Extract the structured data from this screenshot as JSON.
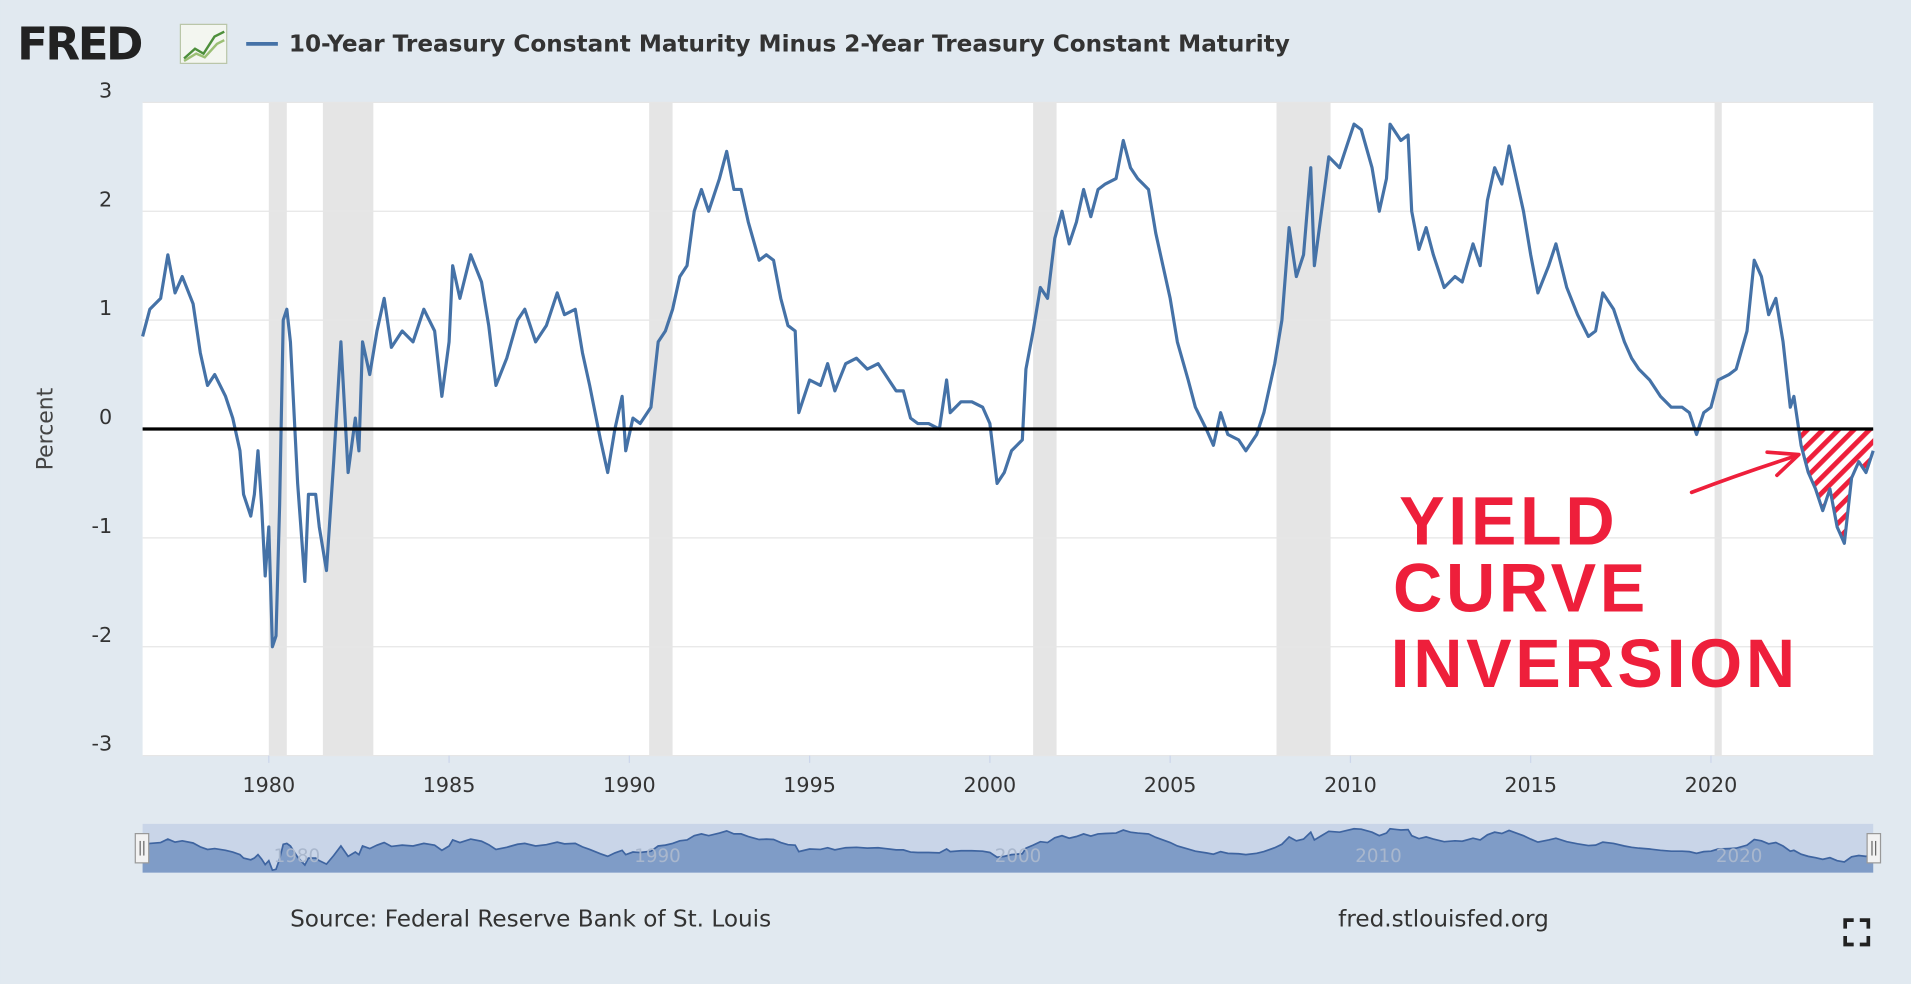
{
  "chart_data": {
    "type": "line",
    "logo": "FRED",
    "y_label": "Percent",
    "source": "Source: Federal Reserve Bank of St. Louis",
    "site": "fred.stlouisfed.org",
    "annotation": [
      "YIELD",
      "CURVE",
      "INVERSION"
    ],
    "xlim": [
      1976.5,
      2024.5
    ],
    "xticks": [
      1980,
      1985,
      1990,
      1995,
      2000,
      2005,
      2010,
      2015,
      2020
    ],
    "ylim": [
      -3,
      3
    ],
    "yticks": [
      -3,
      -2,
      -1,
      0,
      1,
      2,
      3
    ],
    "grid": true,
    "plot_line": 0,
    "recessions": [
      [
        1980.0,
        1980.5
      ],
      [
        1981.5,
        1982.9
      ],
      [
        1990.55,
        1991.2
      ],
      [
        2001.2,
        2001.85
      ],
      [
        2007.95,
        2009.45
      ],
      [
        2020.1,
        2020.3
      ]
    ],
    "navigator_ticks": [
      1980,
      1990,
      2000,
      2010,
      2020
    ],
    "x": [
      1976.5,
      1976.7,
      1977.0,
      1977.2,
      1977.4,
      1977.6,
      1977.9,
      1978.1,
      1978.3,
      1978.5,
      1978.8,
      1979.0,
      1979.2,
      1979.3,
      1979.5,
      1979.6,
      1979.7,
      1979.8,
      1979.9,
      1980.0,
      1980.1,
      1980.2,
      1980.3,
      1980.4,
      1980.5,
      1980.6,
      1980.8,
      1981.0,
      1981.1,
      1981.3,
      1981.4,
      1981.6,
      1981.8,
      1982.0,
      1982.2,
      1982.4,
      1982.5,
      1982.6,
      1982.8,
      1983.0,
      1983.2,
      1983.4,
      1983.7,
      1984.0,
      1984.3,
      1984.6,
      1984.8,
      1985.0,
      1985.1,
      1985.3,
      1985.6,
      1985.9,
      1986.1,
      1986.3,
      1986.6,
      1986.9,
      1987.1,
      1987.4,
      1987.7,
      1988.0,
      1988.2,
      1988.5,
      1988.7,
      1988.9,
      1989.2,
      1989.4,
      1989.6,
      1989.8,
      1989.9,
      1990.1,
      1990.3,
      1990.6,
      1990.8,
      1991.0,
      1991.2,
      1991.4,
      1991.6,
      1991.8,
      1992.0,
      1992.2,
      1992.5,
      1992.7,
      1992.9,
      1993.1,
      1993.3,
      1993.6,
      1993.8,
      1994.0,
      1994.2,
      1994.4,
      1994.6,
      1994.7,
      1995.0,
      1995.3,
      1995.5,
      1995.7,
      1996.0,
      1996.3,
      1996.6,
      1996.9,
      1997.1,
      1997.4,
      1997.6,
      1997.8,
      1998.0,
      1998.3,
      1998.6,
      1998.8,
      1998.9,
      1999.2,
      1999.5,
      1999.8,
      2000.0,
      2000.2,
      2000.4,
      2000.6,
      2000.9,
      2001.0,
      2001.2,
      2001.4,
      2001.6,
      2001.8,
      2002.0,
      2002.2,
      2002.4,
      2002.6,
      2002.8,
      2003.0,
      2003.2,
      2003.5,
      2003.7,
      2003.9,
      2004.1,
      2004.4,
      2004.6,
      2004.8,
      2005.0,
      2005.2,
      2005.5,
      2005.7,
      2006.0,
      2006.2,
      2006.4,
      2006.6,
      2006.9,
      2007.1,
      2007.4,
      2007.6,
      2007.9,
      2008.1,
      2008.3,
      2008.5,
      2008.7,
      2008.9,
      2009.0,
      2009.2,
      2009.4,
      2009.7,
      2009.9,
      2010.1,
      2010.3,
      2010.6,
      2010.8,
      2011.0,
      2011.1,
      2011.4,
      2011.6,
      2011.7,
      2011.9,
      2012.1,
      2012.3,
      2012.6,
      2012.9,
      2013.1,
      2013.4,
      2013.6,
      2013.8,
      2014.0,
      2014.2,
      2014.4,
      2014.6,
      2014.8,
      2015.0,
      2015.2,
      2015.5,
      2015.7,
      2016.0,
      2016.3,
      2016.6,
      2016.8,
      2017.0,
      2017.3,
      2017.6,
      2017.8,
      2018.0,
      2018.3,
      2018.6,
      2018.9,
      2019.2,
      2019.4,
      2019.6,
      2019.8,
      2020.0,
      2020.2,
      2020.5,
      2020.7,
      2021.0,
      2021.2,
      2021.4,
      2021.6,
      2021.8,
      2022.0,
      2022.2,
      2022.3,
      2022.5,
      2022.7,
      2022.9,
      2023.1,
      2023.3,
      2023.5,
      2023.7,
      2023.9,
      2024.1,
      2024.3,
      2024.5
    ],
    "series": [
      {
        "name": "10-Year Treasury Constant Maturity Minus 2-Year Treasury Constant Maturity",
        "color": "#4572a7",
        "values": [
          0.85,
          1.1,
          1.2,
          1.6,
          1.25,
          1.4,
          1.15,
          0.7,
          0.4,
          0.5,
          0.3,
          0.1,
          -0.2,
          -0.6,
          -0.8,
          -0.6,
          -0.2,
          -0.7,
          -1.35,
          -0.9,
          -2.0,
          -1.9,
          -0.7,
          1.0,
          1.1,
          0.8,
          -0.5,
          -1.4,
          -0.6,
          -0.6,
          -0.9,
          -1.3,
          -0.3,
          0.8,
          -0.4,
          0.1,
          -0.2,
          0.8,
          0.5,
          0.9,
          1.2,
          0.75,
          0.9,
          0.8,
          1.1,
          0.9,
          0.3,
          0.8,
          1.5,
          1.2,
          1.6,
          1.35,
          0.95,
          0.4,
          0.65,
          1.0,
          1.1,
          0.8,
          0.95,
          1.25,
          1.05,
          1.1,
          0.7,
          0.4,
          -0.1,
          -0.4,
          0.0,
          0.3,
          -0.2,
          0.1,
          0.05,
          0.2,
          0.8,
          0.9,
          1.1,
          1.4,
          1.5,
          2.0,
          2.2,
          2.0,
          2.3,
          2.55,
          2.2,
          2.2,
          1.9,
          1.55,
          1.6,
          1.55,
          1.2,
          0.95,
          0.9,
          0.15,
          0.45,
          0.4,
          0.6,
          0.35,
          0.6,
          0.65,
          0.55,
          0.6,
          0.5,
          0.35,
          0.35,
          0.1,
          0.05,
          0.05,
          0.0,
          0.45,
          0.15,
          0.25,
          0.25,
          0.2,
          0.05,
          -0.5,
          -0.4,
          -0.2,
          -0.1,
          0.55,
          0.9,
          1.3,
          1.2,
          1.75,
          2.0,
          1.7,
          1.9,
          2.2,
          1.95,
          2.2,
          2.25,
          2.3,
          2.65,
          2.4,
          2.3,
          2.2,
          1.8,
          1.5,
          1.2,
          0.8,
          0.45,
          0.2,
          0.0,
          -0.15,
          0.15,
          -0.05,
          -0.1,
          -0.2,
          -0.05,
          0.15,
          0.6,
          1.0,
          1.85,
          1.4,
          1.6,
          2.4,
          1.5,
          2.0,
          2.5,
          2.4,
          2.6,
          2.8,
          2.75,
          2.4,
          2.0,
          2.3,
          2.8,
          2.65,
          2.7,
          2.0,
          1.65,
          1.85,
          1.6,
          1.3,
          1.4,
          1.35,
          1.7,
          1.5,
          2.1,
          2.4,
          2.25,
          2.6,
          2.3,
          2.0,
          1.6,
          1.25,
          1.5,
          1.7,
          1.3,
          1.05,
          0.85,
          0.9,
          1.25,
          1.1,
          0.8,
          0.65,
          0.55,
          0.45,
          0.3,
          0.2,
          0.2,
          0.15,
          -0.05,
          0.15,
          0.2,
          0.45,
          0.5,
          0.55,
          0.9,
          1.55,
          1.4,
          1.05,
          1.2,
          0.8,
          0.2,
          0.3,
          -0.15,
          -0.4,
          -0.55,
          -0.75,
          -0.55,
          -0.9,
          -1.05,
          -0.45,
          -0.3,
          -0.4,
          -0.2
        ]
      }
    ]
  }
}
